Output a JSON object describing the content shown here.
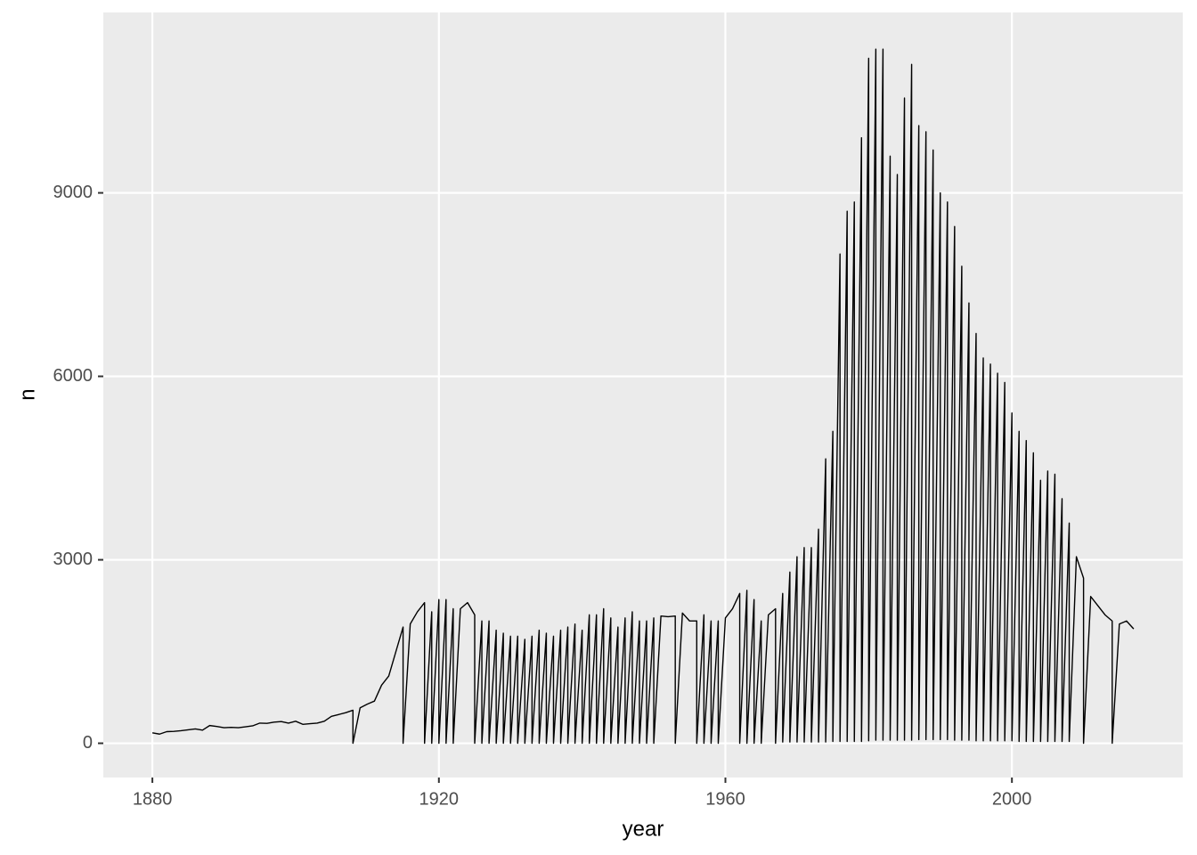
{
  "chart_data": {
    "type": "line",
    "x_label": "year",
    "y_label": "n",
    "color": "#000000",
    "grid": true,
    "xlim": [
      1873.15,
      2023.85
    ],
    "ylim": [
      -560,
      11950
    ],
    "xticks": [
      1880,
      1920,
      1960,
      2000
    ],
    "yticks": [
      0,
      3000,
      6000,
      9000
    ],
    "x": [
      1880,
      1881,
      1882,
      1883,
      1884,
      1885,
      1886,
      1887,
      1888,
      1889,
      1890,
      1891,
      1892,
      1893,
      1894,
      1895,
      1896,
      1897,
      1898,
      1899,
      1900,
      1901,
      1902,
      1903,
      1904,
      1905,
      1906,
      1907,
      1908,
      1908,
      1909,
      1910,
      1911,
      1912,
      1913,
      1914,
      1915,
      1915,
      1916,
      1917,
      1918,
      1918,
      1919,
      1919,
      1920,
      1920,
      1921,
      1921,
      1922,
      1922,
      1923,
      1924,
      1925,
      1925,
      1926,
      1926,
      1927,
      1927,
      1928,
      1928,
      1929,
      1929,
      1930,
      1930,
      1931,
      1931,
      1932,
      1932,
      1933,
      1933,
      1934,
      1934,
      1935,
      1935,
      1936,
      1936,
      1937,
      1937,
      1938,
      1938,
      1939,
      1939,
      1940,
      1940,
      1941,
      1941,
      1942,
      1942,
      1943,
      1943,
      1944,
      1944,
      1945,
      1945,
      1946,
      1946,
      1947,
      1947,
      1948,
      1948,
      1949,
      1949,
      1950,
      1950,
      1951,
      1952,
      1953,
      1953,
      1954,
      1955,
      1956,
      1956,
      1957,
      1957,
      1958,
      1958,
      1959,
      1959,
      1960,
      1961,
      1962,
      1962,
      1963,
      1963,
      1964,
      1964,
      1965,
      1965,
      1966,
      1967,
      1967,
      1968,
      1968,
      1969,
      1969,
      1970,
      1970,
      1971,
      1971,
      1972,
      1972,
      1973,
      1973,
      1974,
      1974,
      1975,
      1975,
      1976,
      1976,
      1977,
      1977,
      1978,
      1978,
      1979,
      1979,
      1980,
      1980,
      1981,
      1981,
      1982,
      1982,
      1983,
      1983,
      1984,
      1984,
      1985,
      1985,
      1986,
      1986,
      1987,
      1987,
      1988,
      1988,
      1989,
      1989,
      1990,
      1990,
      1991,
      1991,
      1992,
      1992,
      1993,
      1993,
      1994,
      1994,
      1995,
      1995,
      1996,
      1996,
      1997,
      1997,
      1998,
      1998,
      1999,
      1999,
      2000,
      2000,
      2001,
      2001,
      2002,
      2002,
      2003,
      2003,
      2004,
      2004,
      2005,
      2005,
      2006,
      2006,
      2007,
      2007,
      2008,
      2008,
      2009,
      2010,
      2010,
      2011,
      2012,
      2013,
      2014,
      2014,
      2015,
      2016,
      2017
    ],
    "values": [
      170,
      150,
      190,
      195,
      205,
      220,
      235,
      215,
      290,
      275,
      255,
      260,
      255,
      270,
      285,
      330,
      325,
      345,
      355,
      330,
      360,
      310,
      320,
      330,
      360,
      440,
      470,
      500,
      540,
      0,
      580,
      640,
      690,
      950,
      1100,
      1500,
      1900,
      0,
      1950,
      2150,
      2300,
      0,
      2150,
      0,
      2350,
      0,
      2350,
      0,
      2200,
      0,
      2200,
      2300,
      2100,
      0,
      2000,
      0,
      2000,
      0,
      1850,
      0,
      1800,
      0,
      1750,
      0,
      1750,
      0,
      1700,
      0,
      1750,
      0,
      1850,
      0,
      1800,
      0,
      1750,
      0,
      1850,
      0,
      1900,
      0,
      1950,
      0,
      1850,
      0,
      2100,
      0,
      2100,
      0,
      2200,
      0,
      2050,
      0,
      1900,
      0,
      2050,
      0,
      2150,
      0,
      2000,
      0,
      2000,
      0,
      2050,
      0,
      2080,
      2070,
      2080,
      0,
      2130,
      2000,
      2000,
      0,
      2100,
      0,
      2000,
      0,
      2000,
      0,
      2050,
      2200,
      2450,
      0,
      2500,
      0,
      2350,
      0,
      2000,
      0,
      2100,
      2200,
      0,
      2450,
      20,
      2800,
      20,
      3050,
      20,
      3200,
      20,
      3200,
      20,
      3500,
      20,
      4650,
      20,
      5100,
      30,
      8000,
      30,
      8700,
      30,
      8850,
      30,
      9900,
      30,
      11200,
      40,
      11350,
      50,
      11350,
      50,
      9600,
      50,
      9300,
      50,
      10550,
      50,
      11100,
      50,
      10100,
      60,
      10000,
      60,
      9700,
      60,
      9000,
      60,
      8850,
      60,
      8450,
      50,
      7800,
      50,
      7200,
      50,
      6700,
      40,
      6300,
      40,
      6200,
      40,
      6050,
      40,
      5900,
      40,
      5400,
      40,
      5100,
      30,
      4950,
      30,
      4750,
      30,
      4300,
      30,
      4450,
      30,
      4400,
      30,
      4000,
      30,
      3600,
      30,
      3050,
      2700,
      0,
      2400,
      2250,
      2100,
      2000,
      0,
      1950,
      2000,
      1870
    ]
  }
}
